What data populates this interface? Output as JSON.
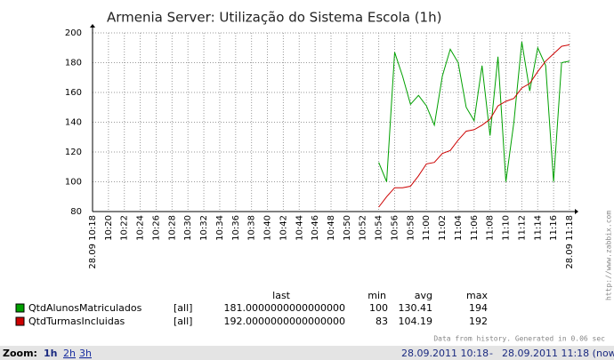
{
  "chart_data": {
    "type": "line",
    "title": "Armenia Server: Utilização do Sistema Escola  (1h)",
    "x": [
      "10:54",
      "10:55",
      "10:56",
      "10:57",
      "10:58",
      "10:59",
      "11:00",
      "11:01",
      "11:02",
      "11:03",
      "11:04",
      "11:05",
      "11:06",
      "11:07",
      "11:08",
      "11:09",
      "11:10",
      "11:11",
      "11:12",
      "11:13",
      "11:14",
      "11:15",
      "11:16",
      "11:17",
      "11:18"
    ],
    "xlim": [
      "10:18",
      "11:18"
    ],
    "xticks": [
      {
        "value": "10:18",
        "label": "28.09 10:18"
      },
      "10:20",
      "10:22",
      "10:24",
      "10:26",
      "10:28",
      "10:30",
      "10:32",
      "10:34",
      "10:36",
      "10:38",
      "10:40",
      "10:42",
      "10:44",
      "10:46",
      "10:48",
      "10:50",
      "10:52",
      "10:54",
      "10:56",
      "10:58",
      "11:00",
      "11:02",
      "11:04",
      "11:06",
      "11:08",
      "11:10",
      "11:12",
      "11:14",
      "11:16",
      {
        "value": "11:18",
        "label": "28.09 11:18"
      }
    ],
    "ylim": [
      80,
      200
    ],
    "yticks": [
      80,
      100,
      120,
      140,
      160,
      180,
      200
    ],
    "grid": true,
    "stats_headers": [
      "last",
      "min",
      "avg",
      "max"
    ],
    "series": [
      {
        "name": "QtdAlunosMatriculados",
        "color": "#00a000",
        "scope": "[all]",
        "values": [
          113,
          100,
          187,
          171,
          152,
          158,
          151,
          138,
          171,
          189,
          180,
          150,
          141,
          178,
          131,
          184,
          100,
          140,
          194,
          161,
          190,
          178,
          100,
          180,
          181
        ],
        "stats": {
          "last": {
            "value": 181,
            "label": "181.0000000000000000"
          },
          "min": 100,
          "avg": 130.41,
          "max": 194
        }
      },
      {
        "name": "QtdTurmasIncluidas",
        "color": "#cc0000",
        "scope": "[all]",
        "values": [
          83,
          90,
          96,
          96,
          97,
          104,
          112,
          113,
          119,
          121,
          128,
          134,
          135,
          138,
          142,
          151,
          154,
          156,
          163,
          166,
          174,
          181,
          186,
          191,
          192
        ],
        "stats": {
          "last": {
            "value": 192,
            "label": "192.0000000000000000"
          },
          "min": 83,
          "avg": 104.19,
          "max": 192
        }
      }
    ]
  },
  "footer_note": "Data from history. Generated in 0.06 sec",
  "watermark": "http://www.zabbix.com",
  "zoom": {
    "label": "Zoom:",
    "options": [
      "1h",
      "2h",
      "3h"
    ]
  },
  "period": {
    "from": "28.09.2011 10:18",
    "separator": "-",
    "to": "28.09.2011 11:18 (now!)"
  }
}
